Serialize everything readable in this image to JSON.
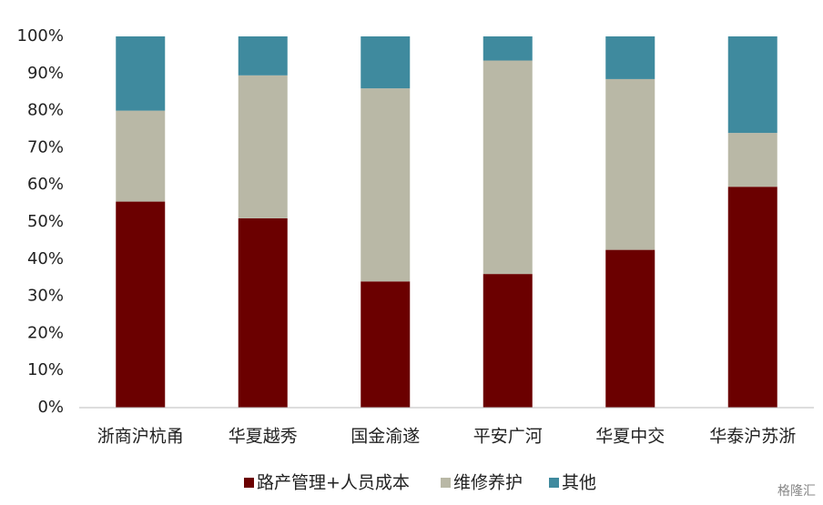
{
  "chart_data": {
    "type": "stacked_bar",
    "categories": [
      "浙商沪杭甬",
      "华夏越秀",
      "国金渝遂",
      "平安广河",
      "华夏中交",
      "华泰沪苏浙"
    ],
    "series": [
      {
        "name": "路产管理+人员成本",
        "color": "#6b0000",
        "values": [
          55.5,
          51,
          34,
          36,
          42.5,
          59.5
        ]
      },
      {
        "name": "维修养护",
        "color": "#b9b8a6",
        "values": [
          24.5,
          38.5,
          52,
          57.5,
          46,
          14.5
        ]
      },
      {
        "name": "其他",
        "color": "#3f8a9e",
        "values": [
          20,
          10.5,
          14,
          6.5,
          11.5,
          26
        ]
      }
    ],
    "ylim": [
      0,
      100
    ],
    "yticks": [
      {
        "value": 0,
        "label": "0%"
      },
      {
        "value": 10,
        "label": "10%"
      },
      {
        "value": 20,
        "label": "20%"
      },
      {
        "value": 30,
        "label": "30%"
      },
      {
        "value": 40,
        "label": "40%"
      },
      {
        "value": 50,
        "label": "50%"
      },
      {
        "value": 60,
        "label": "60%"
      },
      {
        "value": 70,
        "label": "70%"
      },
      {
        "value": 80,
        "label": "80%"
      },
      {
        "value": 90,
        "label": "90%"
      },
      {
        "value": 100,
        "label": "100%"
      }
    ],
    "grid": false,
    "legend": "bottom",
    "watermark": "格隆汇"
  }
}
